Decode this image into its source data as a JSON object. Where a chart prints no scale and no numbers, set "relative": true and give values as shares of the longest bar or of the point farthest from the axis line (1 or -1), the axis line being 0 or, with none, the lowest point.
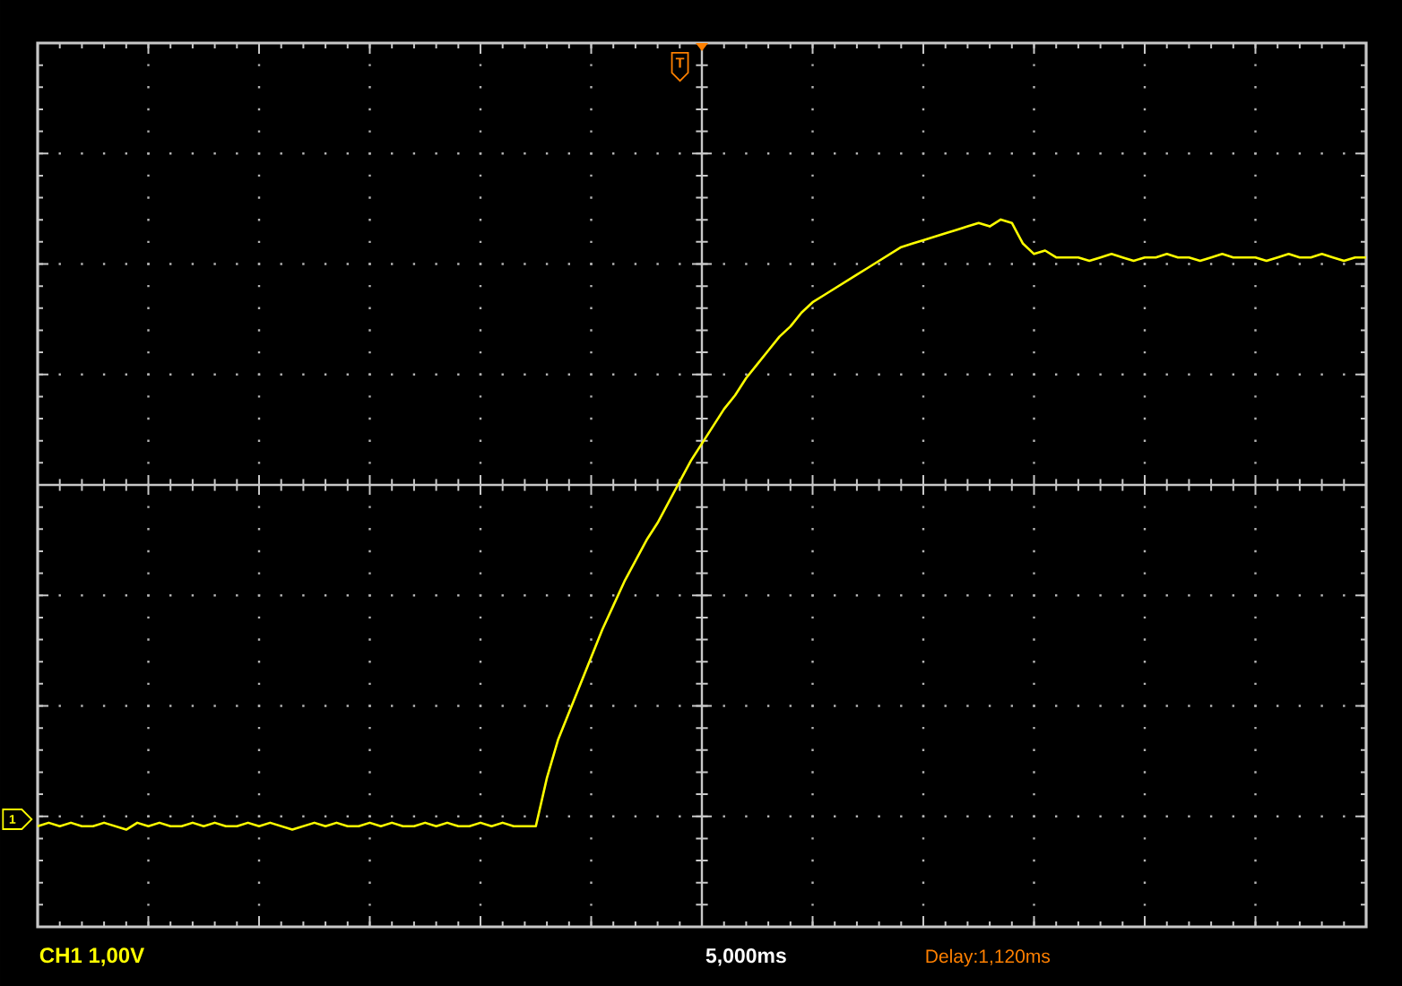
{
  "chart_data": {
    "type": "line",
    "relative": true,
    "grid": true,
    "categories": [
      null,
      null,
      null,
      null,
      null,
      null,
      null,
      null,
      null,
      null,
      null,
      null,
      null,
      null,
      null,
      null,
      null,
      null,
      null,
      null,
      null,
      null,
      null,
      null,
      null,
      null,
      null,
      null,
      null,
      null,
      null,
      null,
      null,
      null,
      null,
      null,
      null,
      null,
      null,
      null,
      null,
      null,
      null,
      null,
      null,
      null,
      null,
      null,
      null,
      null,
      null,
      null,
      null,
      null,
      null,
      null,
      null,
      null,
      null,
      null,
      null,
      null,
      null,
      null,
      null,
      null,
      null,
      null,
      null,
      null,
      null,
      null,
      null,
      null,
      null,
      null,
      null,
      null,
      null,
      null,
      null,
      null,
      null,
      null,
      null,
      null,
      null,
      null,
      null,
      null,
      null,
      null,
      null,
      null,
      null,
      null,
      null,
      null,
      null,
      null,
      null,
      null,
      null,
      null,
      null,
      null,
      null,
      null,
      null,
      null,
      null,
      null,
      null,
      null,
      null,
      null,
      null,
      null,
      null,
      null,
      null
    ],
    "values": [
      -0.99,
      -0.98,
      -0.99,
      -0.98,
      -0.99,
      -0.99,
      -0.98,
      -0.99,
      -1.0,
      -0.98,
      -0.99,
      -0.98,
      -0.99,
      -0.99,
      -0.98,
      -0.99,
      -0.98,
      -0.99,
      -0.99,
      -0.98,
      -0.99,
      -0.98,
      -0.99,
      -1.0,
      -0.99,
      -0.98,
      -0.99,
      -0.98,
      -0.99,
      -0.99,
      -0.98,
      -0.99,
      -0.98,
      -0.99,
      -0.99,
      -0.98,
      -0.99,
      -0.98,
      -0.99,
      -0.99,
      -0.98,
      -0.99,
      -0.98,
      -0.99,
      -0.99,
      -0.99,
      -0.85,
      -0.74,
      -0.66,
      -0.58,
      -0.5,
      -0.42,
      -0.35,
      -0.28,
      -0.22,
      -0.16,
      -0.11,
      -0.05,
      0.01,
      0.07,
      0.12,
      0.17,
      0.22,
      0.26,
      0.31,
      0.35,
      0.39,
      0.43,
      0.46,
      0.5,
      0.53,
      0.55,
      0.57,
      0.59,
      0.61,
      0.63,
      0.65,
      0.67,
      0.69,
      0.7,
      0.71,
      0.72,
      0.73,
      0.74,
      0.75,
      0.76,
      0.75,
      0.77,
      0.76,
      0.7,
      0.67,
      0.68,
      0.66,
      0.66,
      0.66,
      0.65,
      0.66,
      0.67,
      0.66,
      0.65,
      0.66,
      0.66,
      0.67,
      0.66,
      0.66,
      0.65,
      0.66,
      0.67,
      0.66,
      0.66,
      0.66,
      0.65,
      0.66,
      0.67,
      0.66,
      0.66,
      0.67,
      0.66,
      0.65,
      0.66,
      0.66
    ],
    "color": "#ffff00",
    "annotations": [
      "CH1 1,00V",
      "5,000ms",
      "Delay:1,120ms",
      "T",
      "1"
    ]
  }
}
